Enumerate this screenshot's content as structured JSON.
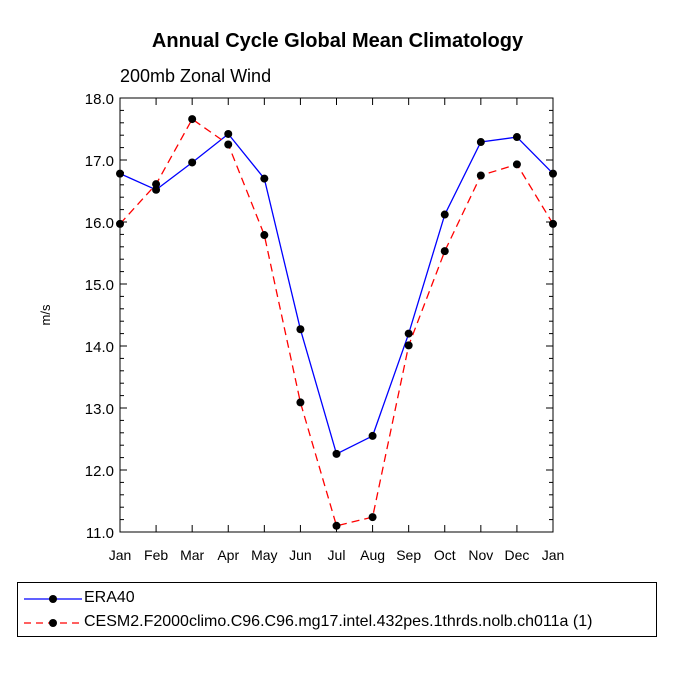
{
  "chart_data": {
    "type": "line",
    "title": "Annual Cycle Global Mean Climatology",
    "subtitle": "200mb Zonal Wind",
    "xlabel": "",
    "ylabel": "m/s",
    "categories": [
      "Jan",
      "Feb",
      "Mar",
      "Apr",
      "May",
      "Jun",
      "Jul",
      "Aug",
      "Sep",
      "Oct",
      "Nov",
      "Dec",
      "Jan"
    ],
    "ylim": [
      11.0,
      18.0
    ],
    "yticks": [
      "11.0",
      "12.0",
      "13.0",
      "14.0",
      "15.0",
      "16.0",
      "17.0",
      "18.0"
    ],
    "grid": false,
    "legend_position": "bottom",
    "series": [
      {
        "name": "ERA40",
        "color": "#0000ff",
        "dash": "solid",
        "values": [
          16.78,
          16.52,
          16.96,
          17.42,
          16.7,
          14.27,
          12.26,
          12.55,
          14.2,
          16.12,
          17.29,
          17.37,
          16.78
        ]
      },
      {
        "name": "CESM2.F2000climo.C96.C96.mg17.intel.432pes.1thrds.nolb.ch011a (1)",
        "color": "#ff0000",
        "dash": "dashed",
        "values": [
          15.97,
          16.61,
          17.66,
          17.25,
          15.79,
          13.09,
          11.1,
          11.24,
          14.01,
          15.53,
          16.75,
          16.93,
          15.97
        ]
      }
    ]
  }
}
